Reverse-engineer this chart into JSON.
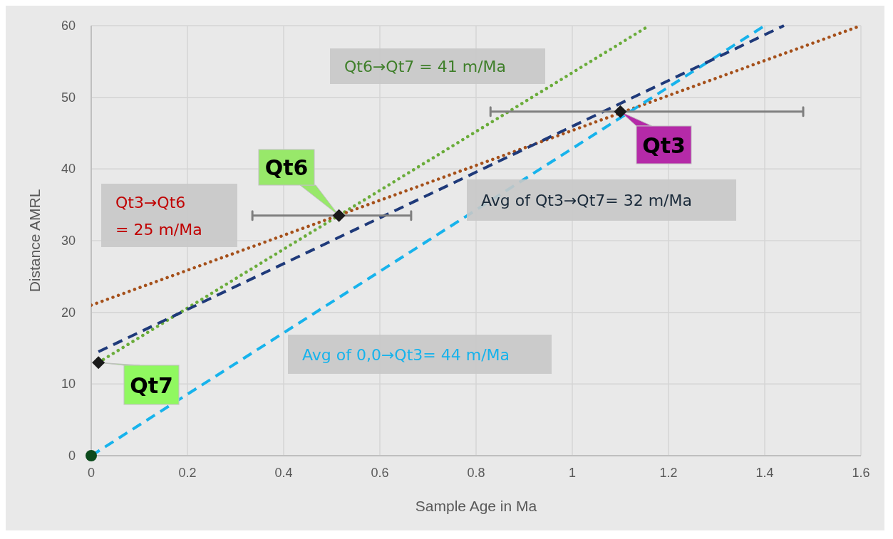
{
  "chart_data": {
    "type": "line",
    "xlabel": "Sample Age in Ma",
    "ylabel": "Distance AMRL",
    "xlim": [
      0,
      1.6
    ],
    "xticks": [
      0,
      0.2,
      0.4,
      0.6,
      0.8,
      1,
      1.2,
      1.4,
      1.6
    ],
    "ylim": [
      0,
      60
    ],
    "yticks": [
      0,
      10,
      20,
      30,
      40,
      50,
      60
    ],
    "grid": true,
    "series": [
      {
        "color": "#6aac3a",
        "line_style": "dotted",
        "x": [
          0.015,
          1.16
        ],
        "values": [
          13,
          60
        ]
      },
      {
        "color": "#a5501a",
        "line_style": "dotted",
        "x": [
          0,
          1.6
        ],
        "values": [
          21,
          60
        ]
      },
      {
        "color": "#17b3ec",
        "line_style": "dashed",
        "x": [
          0,
          1.4
        ],
        "values": [
          0,
          60
        ]
      },
      {
        "color": "#1f3a7a",
        "line_style": "dashed",
        "x": [
          0.015,
          1.44
        ],
        "values": [
          14.5,
          60
        ]
      },
      {
        "type": "scatter",
        "marker": "circle",
        "color": "#0b4a1c",
        "x": [
          0
        ],
        "values": [
          0
        ]
      },
      {
        "type": "scatter",
        "marker": "diamond",
        "color": "#1a1a1a",
        "x": [
          0.015,
          0.515,
          1.1
        ],
        "values": [
          13,
          33.5,
          48
        ],
        "xerrors": [
          null,
          [
            0.335,
            0.665
          ],
          [
            0.83,
            1.48
          ]
        ]
      }
    ],
    "annotations": [
      "Qt6→Qt7 = 41 m/Ma",
      "Qt3→Qt6\n= 25 m/Ma",
      "Avg of Qt3→Qt7= 32 m/Ma",
      "Avg of 0,0→Qt3= 44 m/Ma",
      {
        "text": "Qt6",
        "x": 0.515,
        "y": 33.5
      },
      {
        "text": "Qt3",
        "x": 1.1,
        "y": 48
      },
      {
        "text": "Qt7",
        "x": 0.015,
        "y": 13
      }
    ]
  }
}
